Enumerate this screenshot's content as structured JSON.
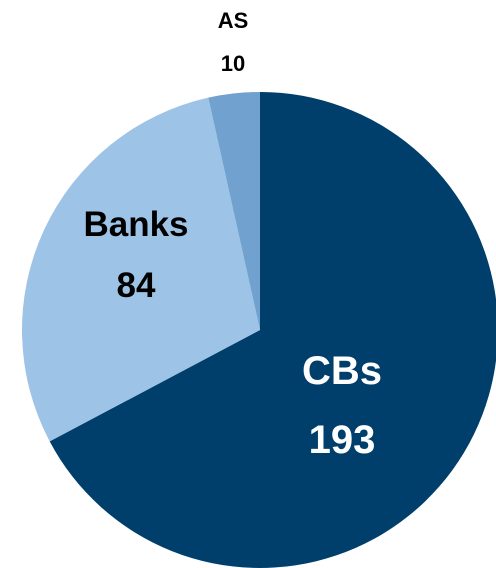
{
  "chart_data": {
    "type": "pie",
    "title": "",
    "slices": [
      {
        "label": "CBs",
        "value": 193,
        "color": "#003f6b",
        "text_color": "#ffffff"
      },
      {
        "label": "Banks",
        "value": 84,
        "color": "#9dc3e6",
        "text_color": "#000000"
      },
      {
        "label": "AS",
        "value": 10,
        "color": "#70a1cf",
        "text_color": "#000000"
      }
    ],
    "start_angle_deg": 0,
    "direction": "clockwise",
    "legend": "none"
  }
}
